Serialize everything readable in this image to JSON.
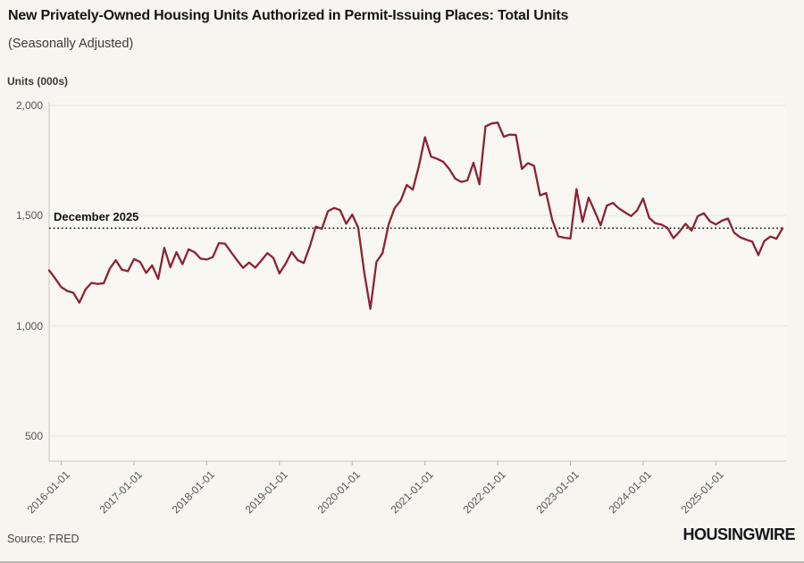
{
  "header": {
    "title": "New Privately-Owned Housing Units Authorized in Permit-Issuing Places: Total Units",
    "subtitle": "(Seasonally Adjusted)"
  },
  "footer": {
    "source": "Source: FRED",
    "brand": "HOUSINGWIRE"
  },
  "chart_data": {
    "type": "line",
    "title": "New Privately-Owned Housing Units Authorized in Permit-Issuing Places: Total Units (Seasonally Adjusted)",
    "ylabel": "Units (000s)",
    "frequency": "monthly",
    "x_start": "2015-11",
    "x_end": "2025-12",
    "x_tick_labels": [
      "2016-01-01",
      "2017-01-01",
      "2018-01-01",
      "2019-01-01",
      "2020-01-01",
      "2021-01-01",
      "2022-01-01",
      "2023-01-01",
      "2024-01-01",
      "2025-01-01"
    ],
    "y_tick_labels": [
      "2,000",
      "1,500",
      "1,000",
      "500"
    ],
    "y_tick_values": [
      2000,
      1500,
      1000,
      500
    ],
    "ylim": [
      386,
      2032
    ],
    "grid": "horizontal",
    "legend": "none",
    "line_color": "#8c2333",
    "reference_line": {
      "label": "December 2025",
      "value": 1443,
      "style": "dotted",
      "color": "#1c1c1c"
    },
    "values": [
      1252,
      1215,
      1175,
      1158,
      1150,
      1105,
      1165,
      1195,
      1190,
      1193,
      1260,
      1298,
      1255,
      1248,
      1303,
      1290,
      1240,
      1274,
      1213,
      1354,
      1266,
      1334,
      1280,
      1347,
      1334,
      1305,
      1301,
      1312,
      1375,
      1373,
      1335,
      1298,
      1263,
      1287,
      1264,
      1296,
      1330,
      1308,
      1238,
      1281,
      1335,
      1298,
      1285,
      1360,
      1450,
      1440,
      1520,
      1535,
      1525,
      1463,
      1505,
      1445,
      1240,
      1077,
      1290,
      1330,
      1460,
      1535,
      1568,
      1639,
      1618,
      1725,
      1856,
      1768,
      1758,
      1745,
      1712,
      1668,
      1653,
      1660,
      1740,
      1642,
      1905,
      1918,
      1922,
      1858,
      1868,
      1866,
      1712,
      1738,
      1726,
      1592,
      1602,
      1480,
      1406,
      1400,
      1396,
      1620,
      1472,
      1582,
      1520,
      1456,
      1545,
      1558,
      1533,
      1515,
      1498,
      1524,
      1578,
      1490,
      1465,
      1460,
      1445,
      1398,
      1428,
      1463,
      1432,
      1497,
      1511,
      1475,
      1460,
      1477,
      1487,
      1423,
      1402,
      1391,
      1382,
      1321,
      1385,
      1405,
      1395,
      1443
    ]
  }
}
